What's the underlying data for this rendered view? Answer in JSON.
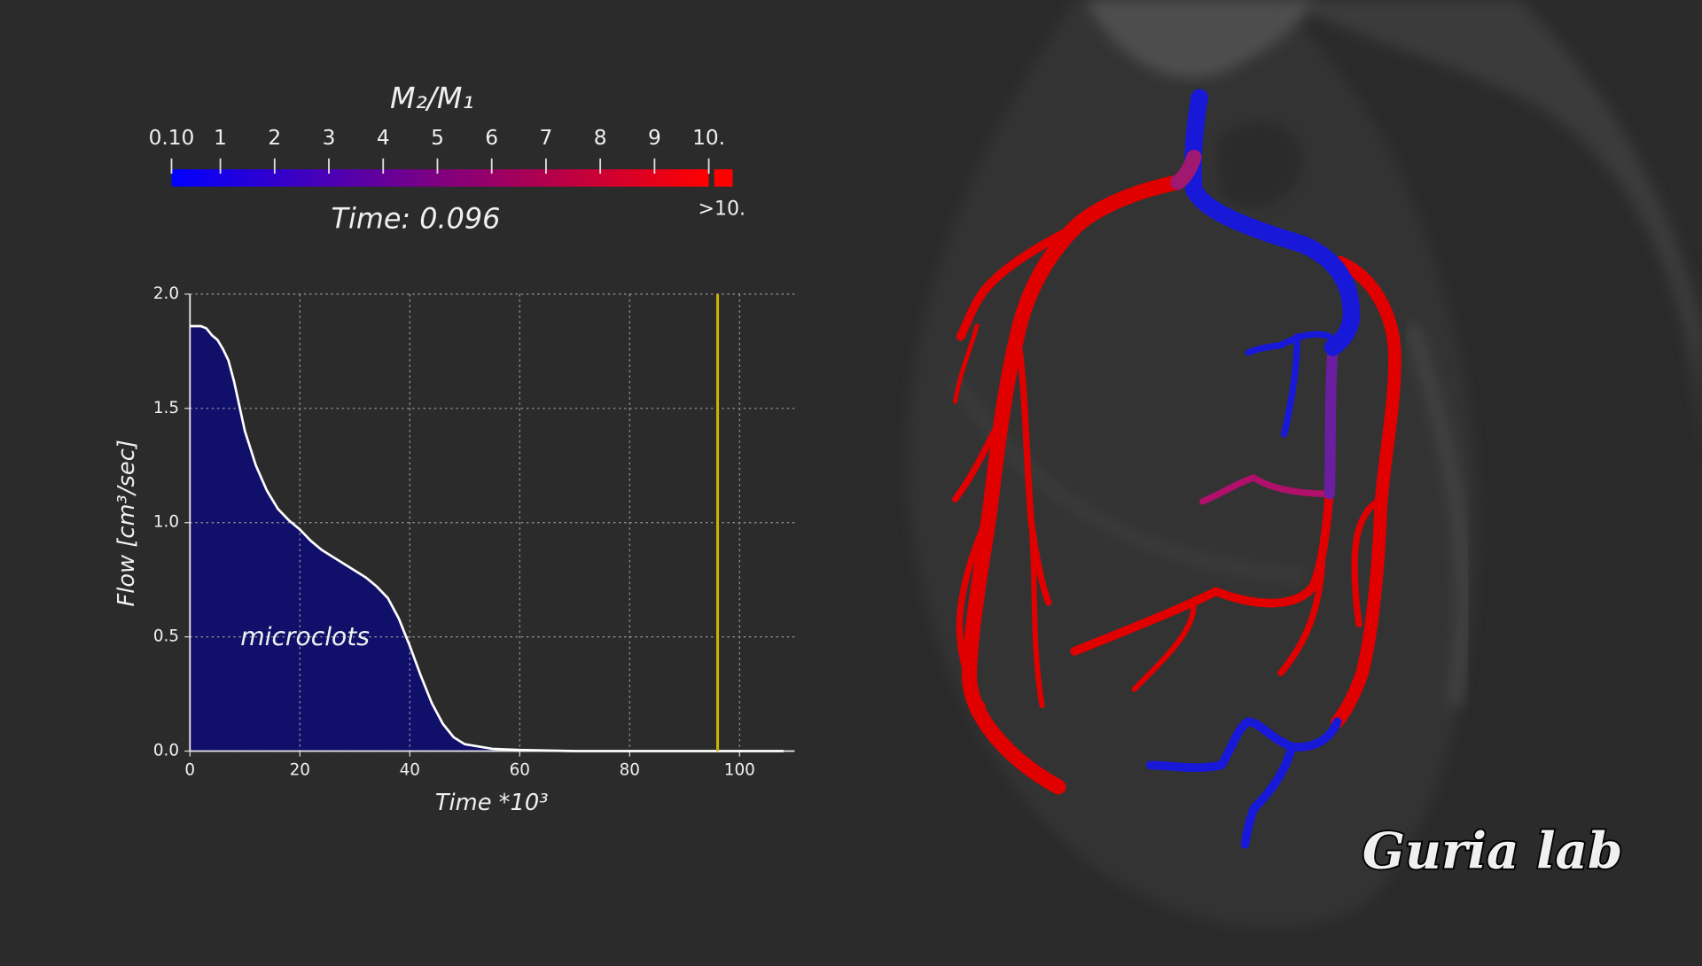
{
  "chart_data": [
    {
      "type": "colorbar",
      "title": "M₂/M₁",
      "lim": [
        0.1,
        10
      ],
      "colors": [
        "#0000ff",
        "#ff0000"
      ],
      "ticks": [
        {
          "value": 0.1,
          "label": "0.10"
        },
        1,
        2,
        3,
        4,
        5,
        6,
        7,
        8,
        9,
        {
          "value": 10,
          "label": "10."
        }
      ],
      "above_label": ">10.",
      "above_color": "#ff0000",
      "time_label": "Time: 0.096"
    },
    {
      "type": "area",
      "xlabel": "Time *10³",
      "ylabel": "Flow [cm³/sec]",
      "annotation": "microclots",
      "x": [
        0,
        2,
        3,
        4,
        5,
        6,
        7,
        8,
        10,
        12,
        14,
        16,
        18,
        20,
        22,
        24,
        26,
        28,
        30,
        32,
        34,
        36,
        38,
        40,
        42,
        44,
        46,
        48,
        50,
        55,
        60,
        70,
        80,
        90,
        100,
        108
      ],
      "values": [
        1.86,
        1.86,
        1.85,
        1.82,
        1.8,
        1.76,
        1.71,
        1.62,
        1.4,
        1.25,
        1.14,
        1.06,
        1.01,
        0.97,
        0.92,
        0.88,
        0.85,
        0.82,
        0.79,
        0.76,
        0.72,
        0.67,
        0.58,
        0.46,
        0.33,
        0.21,
        0.12,
        0.06,
        0.03,
        0.01,
        0.005,
        0,
        0,
        0,
        0,
        0
      ],
      "color": "#ffffff",
      "fill": "#10106b",
      "xlim": [
        0,
        110
      ],
      "ylim": [
        0,
        2
      ],
      "xticks": [
        0,
        20,
        40,
        60,
        80,
        100
      ],
      "yticks": [
        {
          "value": 0,
          "label": "0.0"
        },
        {
          "value": 0.5,
          "label": "0.5"
        },
        {
          "value": 1,
          "label": "1.0"
        },
        {
          "value": 1.5,
          "label": "1.5"
        },
        {
          "value": 2,
          "label": "2.0"
        }
      ],
      "grid": true,
      "marker_x": 96,
      "marker_color": "#c8b400"
    }
  ],
  "watermark": "Guria lab"
}
